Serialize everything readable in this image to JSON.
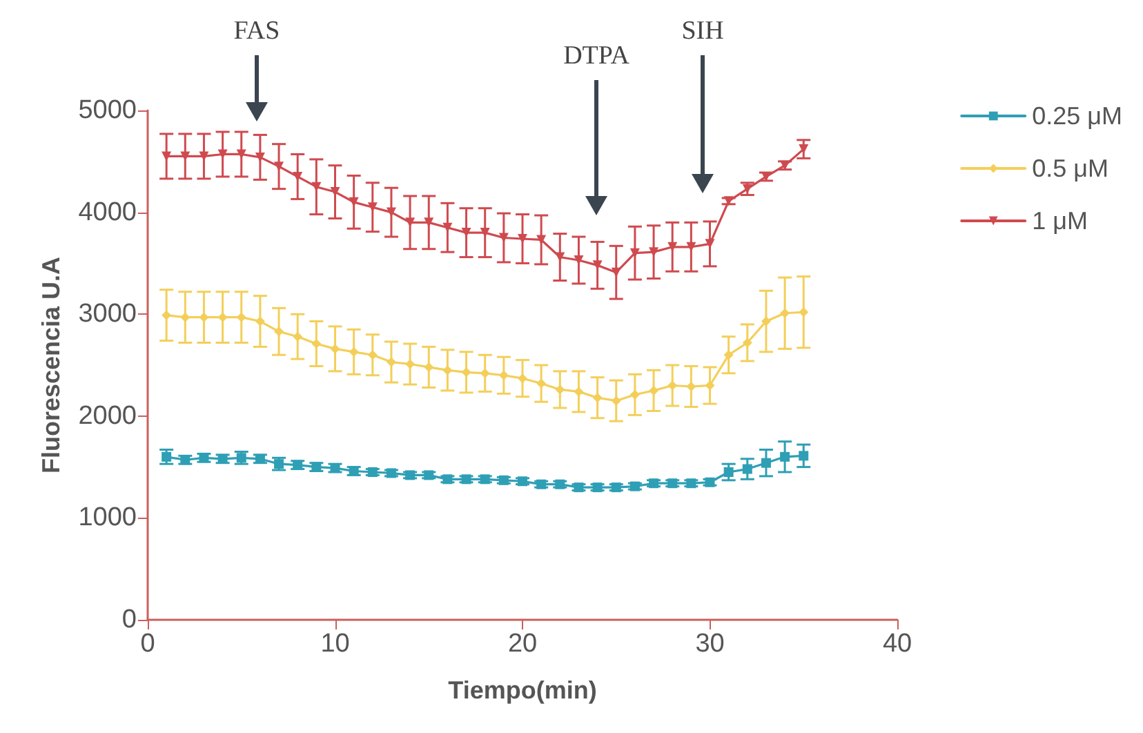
{
  "chart_data": {
    "type": "line",
    "xlabel": "Tiempo(min)",
    "ylabel": "Fluorescencia U.A",
    "xlim": [
      0,
      40
    ],
    "xticks": [
      0,
      10,
      20,
      30,
      40
    ],
    "ylim": [
      0,
      5000
    ],
    "yticks": [
      0,
      1000,
      2000,
      3000,
      4000,
      5000
    ],
    "grid": false,
    "legend": "right",
    "line_style": "solid",
    "x": [
      1,
      2,
      3,
      4,
      5,
      6,
      7,
      8,
      9,
      10,
      11,
      12,
      13,
      14,
      15,
      16,
      17,
      18,
      19,
      20,
      21,
      22,
      23,
      24,
      25,
      26,
      27,
      28,
      29,
      30,
      31,
      32,
      33,
      34,
      35
    ],
    "series": [
      {
        "name": "0.25 μM",
        "color": "#2e9fb5",
        "marker": "square",
        "values": [
          1600,
          1570,
          1590,
          1580,
          1590,
          1580,
          1530,
          1520,
          1500,
          1490,
          1460,
          1450,
          1440,
          1420,
          1420,
          1380,
          1380,
          1380,
          1370,
          1360,
          1330,
          1330,
          1300,
          1300,
          1300,
          1310,
          1340,
          1340,
          1340,
          1350,
          1450,
          1480,
          1540,
          1600,
          1610
        ],
        "errors": [
          70,
          40,
          40,
          40,
          60,
          40,
          60,
          40,
          40,
          40,
          40,
          30,
          30,
          30,
          30,
          30,
          30,
          30,
          30,
          30,
          30,
          30,
          30,
          30,
          30,
          30,
          30,
          30,
          30,
          30,
          80,
          100,
          130,
          150,
          110
        ]
      },
      {
        "name": "0.5 μM",
        "color": "#f3cf5a",
        "marker": "diamond",
        "values": [
          2990,
          2970,
          2970,
          2970,
          2970,
          2930,
          2830,
          2780,
          2710,
          2660,
          2630,
          2600,
          2530,
          2510,
          2480,
          2450,
          2430,
          2420,
          2400,
          2370,
          2320,
          2260,
          2240,
          2180,
          2150,
          2210,
          2250,
          2300,
          2290,
          2300,
          2600,
          2720,
          2930,
          3010,
          3020
        ],
        "errors": [
          250,
          250,
          250,
          250,
          250,
          250,
          230,
          220,
          220,
          220,
          220,
          200,
          200,
          200,
          200,
          200,
          200,
          180,
          180,
          180,
          180,
          180,
          200,
          200,
          200,
          200,
          200,
          200,
          200,
          180,
          180,
          180,
          300,
          350,
          350
        ]
      },
      {
        "name": "1 μM",
        "color": "#cf4a4f",
        "marker": "triangle",
        "values": [
          4550,
          4550,
          4550,
          4570,
          4570,
          4540,
          4450,
          4350,
          4250,
          4200,
          4100,
          4050,
          4000,
          3900,
          3900,
          3850,
          3800,
          3800,
          3750,
          3740,
          3730,
          3560,
          3530,
          3480,
          3410,
          3600,
          3610,
          3660,
          3660,
          3690,
          4110,
          4230,
          4350,
          4460,
          4620
        ],
        "errors": [
          220,
          220,
          220,
          220,
          220,
          220,
          220,
          220,
          270,
          260,
          260,
          240,
          240,
          260,
          260,
          240,
          240,
          240,
          240,
          240,
          240,
          230,
          230,
          230,
          260,
          260,
          260,
          240,
          240,
          220,
          30,
          60,
          40,
          40,
          90
        ]
      }
    ],
    "annotations": [
      "FAS",
      "DTPA",
      "SIH"
    ]
  }
}
